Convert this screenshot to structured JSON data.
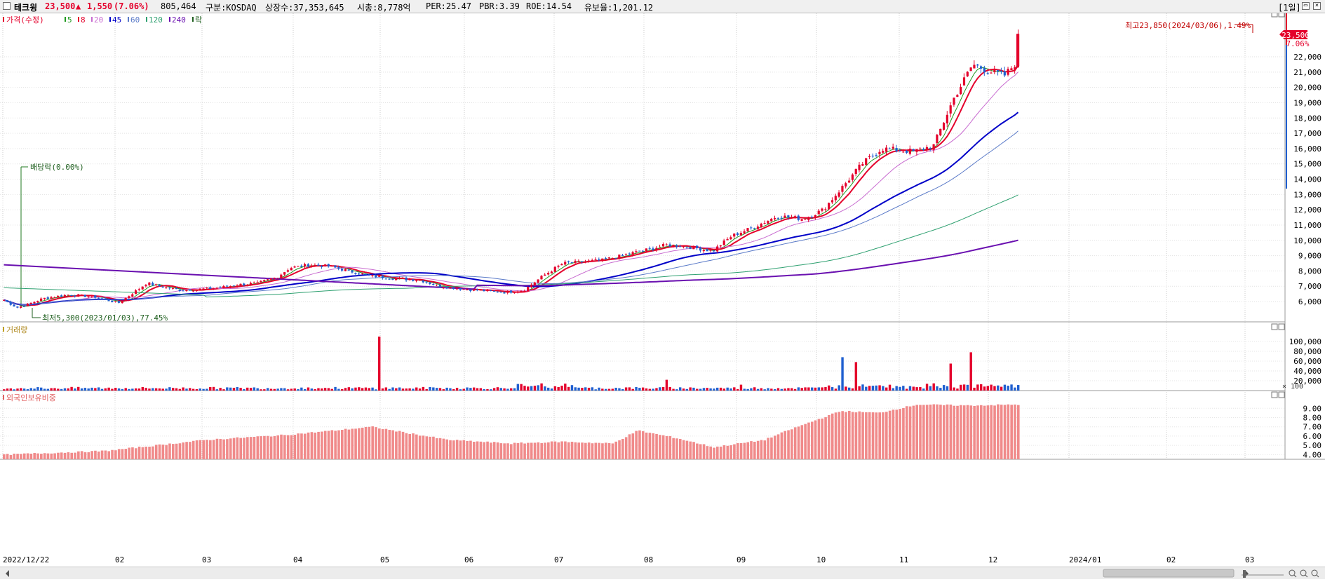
{
  "header": {
    "checkbox_icon": "square-outline-icon",
    "stock_name": "테크윙",
    "price": "23,500",
    "change_arrow": "▲",
    "change": "1,550",
    "change_pct": "(7.06%)",
    "volume": "805,464",
    "market": "구분:KOSDAQ",
    "shares": "상장수:37,353,645",
    "market_cap": "시총:8,778억",
    "per": "PER:25.47",
    "pbr": "PBR:3.39",
    "roe": "ROE:14.54",
    "float_ratio": "유보율:1,201.12",
    "period": "[1일]"
  },
  "price_panel": {
    "legend_price": "가격(수정)",
    "ma_legend": [
      {
        "label": "5",
        "color": "#1f9a1f"
      },
      {
        "label": "8",
        "color": "#e4002b"
      },
      {
        "label": "20",
        "color": "#c86bd0"
      },
      {
        "label": "45",
        "color": "#0000c8"
      },
      {
        "label": "60",
        "color": "#5a7ac8"
      },
      {
        "label": "120",
        "color": "#2ea070"
      },
      {
        "label": "240",
        "color": "#6a10b0"
      }
    ],
    "legend_drop": "락",
    "dividend_marker": "배당락(0.00%)",
    "high_annotation": "최고23,850(2024/03/06),1.49%",
    "low_annotation": "최저5,300(2023/01/03),77.45%",
    "current_price_tag": "23,500",
    "current_pct_tag": "7.06%",
    "y_labels": [
      "22,000",
      "21,000",
      "20,000",
      "19,000",
      "18,000",
      "17,000",
      "16,000",
      "15,000",
      "14,000",
      "13,000",
      "12,000",
      "11,000",
      "10,000",
      "9,000",
      "8,000",
      "7,000",
      "6,000"
    ]
  },
  "volume_panel": {
    "legend": "거래량",
    "y_labels": [
      "100,000",
      "80,000",
      "60,000",
      "40,000",
      "20,000"
    ],
    "unit": "× 100"
  },
  "foreign_panel": {
    "legend": "외국인보유비중",
    "y_labels": [
      "9.00",
      "8.00",
      "7.00",
      "6.00",
      "5.00",
      "4.00"
    ]
  },
  "x_axis": [
    "2022/12/22",
    "02",
    "03",
    "04",
    "05",
    "06",
    "07",
    "08",
    "09",
    "10",
    "11",
    "12",
    "2024/01",
    "02",
    "03"
  ],
  "colors": {
    "up": "#e4002b",
    "down": "#1f5fd0",
    "foreign_bar": "#f08a8a"
  }
}
